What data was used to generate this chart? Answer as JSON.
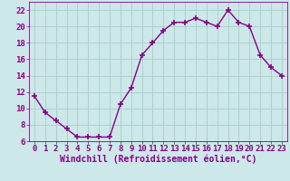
{
  "x": [
    0,
    1,
    2,
    3,
    4,
    5,
    6,
    7,
    8,
    9,
    10,
    11,
    12,
    13,
    14,
    15,
    16,
    17,
    18,
    19,
    20,
    21,
    22,
    23
  ],
  "y": [
    11.5,
    9.5,
    8.5,
    7.5,
    6.5,
    6.5,
    6.5,
    6.5,
    10.5,
    12.5,
    16.5,
    18.0,
    19.5,
    20.5,
    20.5,
    21.0,
    20.5,
    20.0,
    22.0,
    20.5,
    20.0,
    16.5,
    15.0,
    14.0
  ],
  "line_color": "#880088",
  "marker": "+",
  "marker_size": 4,
  "marker_linewidth": 1.2,
  "line_width": 1.0,
  "xlabel": "Windchill (Refroidissement éolien,°C)",
  "xlabel_fontsize": 7,
  "xlim": [
    -0.5,
    23.5
  ],
  "ylim": [
    6,
    23
  ],
  "yticks": [
    6,
    8,
    10,
    12,
    14,
    16,
    18,
    20,
    22
  ],
  "xticks": [
    0,
    1,
    2,
    3,
    4,
    5,
    6,
    7,
    8,
    9,
    10,
    11,
    12,
    13,
    14,
    15,
    16,
    17,
    18,
    19,
    20,
    21,
    22,
    23
  ],
  "grid_color": "#aacccc",
  "bg_color": "#cce8e8",
  "tick_fontsize": 6.5,
  "tick_color": "#880088",
  "font_family": "monospace"
}
